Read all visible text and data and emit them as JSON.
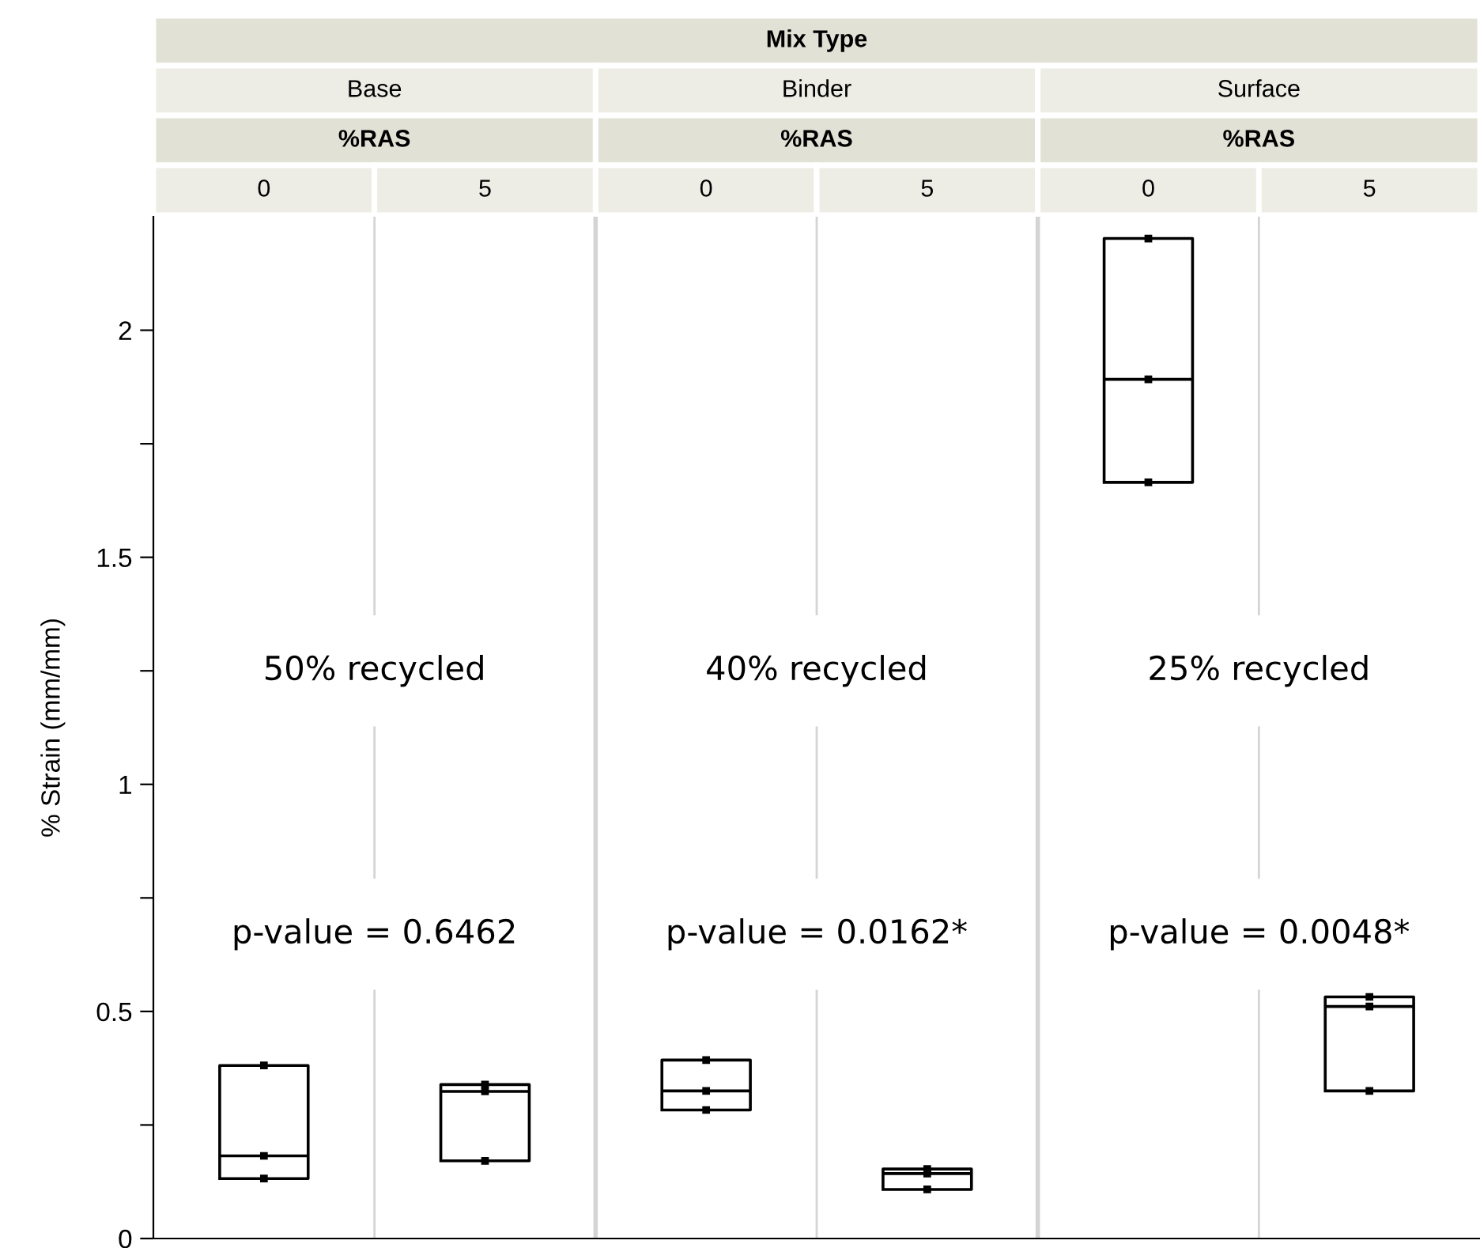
{
  "chart_data": {
    "type": "box",
    "ylabel": "% Strain (mm/mm)",
    "categories": [
      "0",
      "5",
      "0",
      "5",
      "0",
      "5"
    ],
    "boxes": [
      {
        "low": 0.132,
        "q1": 0.132,
        "median": 0.182,
        "q3": 0.381,
        "high": 0.381
      },
      {
        "low": 0.171,
        "q1": 0.171,
        "median": 0.324,
        "q3": 0.339,
        "high": 0.339
      },
      {
        "low": 0.283,
        "q1": 0.283,
        "median": 0.325,
        "q3": 0.393,
        "high": 0.393
      },
      {
        "low": 0.108,
        "q1": 0.108,
        "median": 0.143,
        "q3": 0.153,
        "high": 0.153
      },
      {
        "low": 1.665,
        "q1": 1.665,
        "median": 1.892,
        "q3": 2.202,
        "high": 2.202
      },
      {
        "low": 0.325,
        "q1": 0.325,
        "median": 0.511,
        "q3": 0.532,
        "high": 0.532
      }
    ],
    "series": [
      {
        "type": "scatter",
        "color": "#000000",
        "values": [
          0.132,
          0.171,
          0.283,
          0.108,
          1.665,
          0.325
        ]
      },
      {
        "type": "scatter",
        "color": "#000000",
        "values": [
          0.182,
          0.324,
          0.325,
          0.143,
          1.892,
          0.511
        ]
      },
      {
        "type": "scatter",
        "color": "#000000",
        "values": [
          0.381,
          0.339,
          0.393,
          0.153,
          2.202,
          0.532
        ]
      }
    ],
    "marker": "square",
    "ylim": [
      0,
      2.25
    ],
    "yticks": [
      0,
      {
        "value": 0.25,
        "label": null
      },
      0.5,
      {
        "value": 0.75,
        "label": null
      },
      1,
      {
        "value": 1.25,
        "label": null
      },
      1.5,
      {
        "value": 1.75,
        "label": null
      },
      2
    ],
    "annotations": [
      "Mix Type",
      "Base",
      "Binder",
      "Surface",
      "%RAS",
      "%RAS",
      "%RAS",
      "50% recycled",
      "40% recycled",
      "25% recycled",
      "p-value = 0.6462",
      "p-value = 0.0162*",
      "p-value = 0.0048*"
    ],
    "grid": false
  }
}
